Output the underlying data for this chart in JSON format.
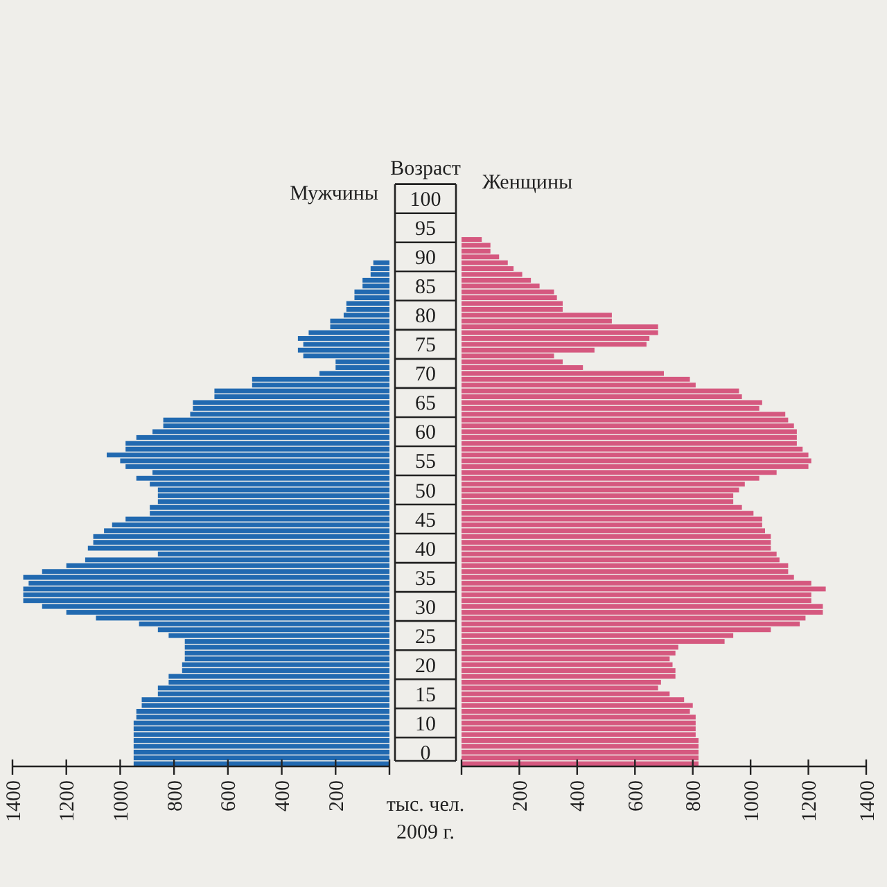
{
  "chart_data": [
    {
      "type": "bar",
      "orientation": "horizontal",
      "title": "Мужчины",
      "ylabel": "Возраст",
      "categories": [
        null,
        null,
        "100",
        null,
        null,
        null,
        null,
        "95",
        null,
        null,
        null,
        null,
        "90",
        null,
        null,
        null,
        null,
        "85",
        null,
        null,
        null,
        null,
        "80",
        null,
        null,
        null,
        null,
        "75",
        null,
        null,
        null,
        null,
        "70",
        null,
        null,
        null,
        null,
        "65",
        null,
        null,
        null,
        null,
        "60",
        null,
        null,
        null,
        null,
        "55",
        null,
        null,
        null,
        null,
        "50",
        null,
        null,
        null,
        null,
        "45",
        null,
        null,
        null,
        null,
        "40",
        null,
        null,
        null,
        null,
        "35",
        null,
        null,
        null,
        null,
        "30",
        null,
        null,
        null,
        null,
        "25",
        null,
        null,
        null,
        null,
        "20",
        null,
        null,
        null,
        null,
        "15",
        null,
        null,
        null,
        null,
        "10",
        null,
        null,
        null,
        null,
        "0",
        null,
        null
      ],
      "values": [
        null,
        null,
        null,
        null,
        null,
        null,
        null,
        null,
        null,
        null,
        null,
        null,
        null,
        60,
        70,
        70,
        100,
        100,
        130,
        130,
        160,
        160,
        170,
        220,
        220,
        300,
        340,
        320,
        340,
        320,
        200,
        200,
        260,
        510,
        510,
        650,
        650,
        730,
        730,
        740,
        840,
        840,
        880,
        940,
        980,
        980,
        1050,
        1000,
        980,
        880,
        940,
        890,
        860,
        860,
        860,
        890,
        890,
        980,
        1030,
        1060,
        1100,
        1100,
        1120,
        860,
        1130,
        1200,
        1290,
        1360,
        1340,
        1360,
        1360,
        1360,
        1290,
        1200,
        1090,
        930,
        860,
        820,
        760,
        760,
        760,
        760,
        770,
        770,
        820,
        820,
        860,
        860,
        920,
        920,
        940,
        940,
        950,
        950,
        950,
        950,
        950,
        950,
        950,
        950
      ],
      "color": "#2169b0",
      "xlim": [
        1400,
        0
      ],
      "xticks": [
        1400,
        1200,
        1000,
        800,
        600,
        400,
        200,
        {
          "value": 0,
          "label": null
        }
      ],
      "annotations": [
        "тыс. чел.",
        "2009 г."
      ]
    },
    {
      "type": "bar",
      "orientation": "horizontal",
      "title": "Женщины",
      "categories": [
        null,
        null,
        "100",
        null,
        null,
        null,
        null,
        "95",
        null,
        null,
        null,
        null,
        "90",
        null,
        null,
        null,
        null,
        "85",
        null,
        null,
        null,
        null,
        "80",
        null,
        null,
        null,
        null,
        "75",
        null,
        null,
        null,
        null,
        "70",
        null,
        null,
        null,
        null,
        "65",
        null,
        null,
        null,
        null,
        "60",
        null,
        null,
        null,
        null,
        "55",
        null,
        null,
        null,
        null,
        "50",
        null,
        null,
        null,
        null,
        "45",
        null,
        null,
        null,
        null,
        "40",
        null,
        null,
        null,
        null,
        "35",
        null,
        null,
        null,
        null,
        "30",
        null,
        null,
        null,
        null,
        "25",
        null,
        null,
        null,
        null,
        "20",
        null,
        null,
        null,
        null,
        "15",
        null,
        null,
        null,
        null,
        "10",
        null,
        null,
        null,
        null,
        "0",
        null,
        null
      ],
      "values": [
        null,
        null,
        null,
        null,
        null,
        null,
        null,
        null,
        null,
        70,
        100,
        100,
        130,
        160,
        180,
        210,
        240,
        270,
        320,
        330,
        350,
        350,
        520,
        520,
        680,
        680,
        650,
        640,
        460,
        320,
        350,
        420,
        700,
        790,
        810,
        960,
        970,
        1040,
        1030,
        1120,
        1130,
        1150,
        1160,
        1160,
        1160,
        1180,
        1200,
        1210,
        1200,
        1090,
        1030,
        980,
        960,
        940,
        940,
        970,
        1010,
        1040,
        1040,
        1050,
        1070,
        1070,
        1070,
        1090,
        1100,
        1130,
        1130,
        1150,
        1210,
        1260,
        1210,
        1210,
        1250,
        1250,
        1190,
        1170,
        1070,
        940,
        910,
        750,
        740,
        720,
        730,
        740,
        740,
        690,
        680,
        720,
        770,
        800,
        790,
        810,
        810,
        810,
        810,
        820,
        820,
        820,
        820,
        820
      ],
      "color": "#d5587f",
      "xlim": [
        0,
        1400
      ],
      "xticks": [
        {
          "value": 0,
          "label": null
        },
        200,
        400,
        600,
        800,
        1000,
        1200,
        1400
      ],
      "tick_labels": "x"
    }
  ]
}
